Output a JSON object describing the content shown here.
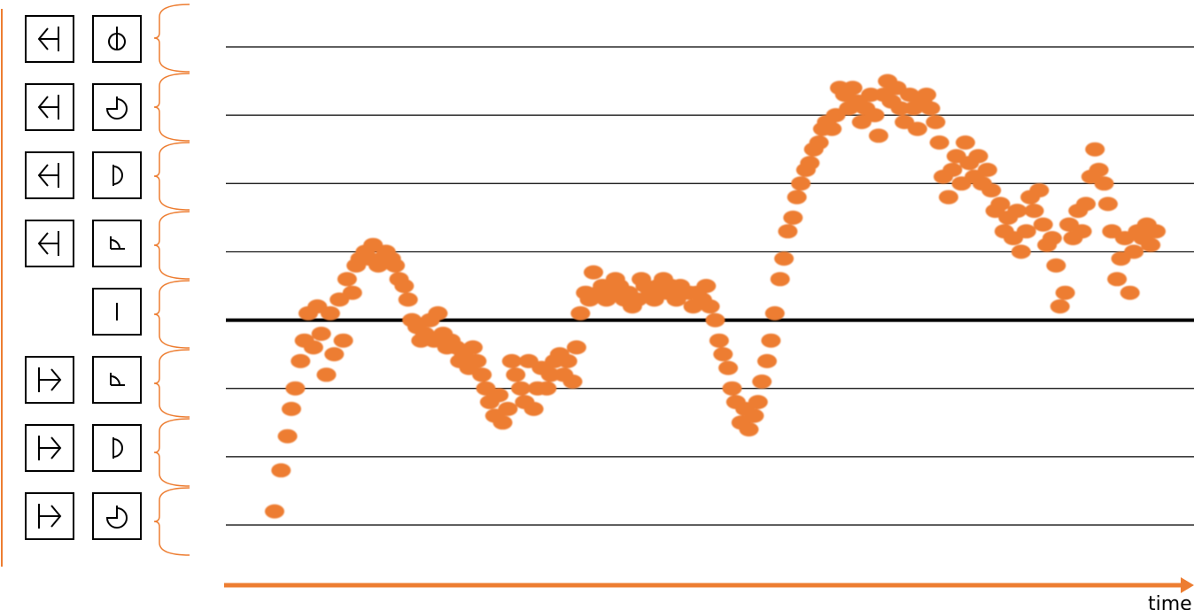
{
  "colors": {
    "points": "#ED7D31",
    "bracket": "#ED7D31",
    "axis_arrow": "#ED7D31",
    "gridline": "#000000",
    "baseline": "#000000"
  },
  "legend": {
    "rows": [
      {
        "direction_icon": "arrow-left-icon",
        "state_icon": "dial-up-icon"
      },
      {
        "direction_icon": "arrow-left-icon",
        "state_icon": "dial-three-quarter-icon"
      },
      {
        "direction_icon": "arrow-left-icon",
        "state_icon": "dial-half-icon"
      },
      {
        "direction_icon": "arrow-left-icon",
        "state_icon": "dial-quarter-icon"
      },
      {
        "direction_icon": "",
        "state_icon": "vertical-bar-icon"
      },
      {
        "direction_icon": "arrow-right-icon",
        "state_icon": "dial-quarter-icon"
      },
      {
        "direction_icon": "arrow-right-icon",
        "state_icon": "dial-half-icon"
      },
      {
        "direction_icon": "arrow-right-icon",
        "state_icon": "dial-three-quarter-icon"
      }
    ]
  },
  "chart_data": {
    "type": "scatter",
    "title": "",
    "xlabel": "time",
    "ylabel": "",
    "grid": true,
    "xlim": [
      0,
      100
    ],
    "ylim": [
      -4,
      4
    ],
    "baseline": 0,
    "gridlines_y": [
      -3,
      -2,
      -1,
      1,
      2,
      3,
      4
    ],
    "series": [
      {
        "points": [
          [
            0,
            -2.8
          ],
          [
            0.5,
            -2.2
          ],
          [
            1,
            -1.7
          ],
          [
            1.3,
            -1.3
          ],
          [
            1.6,
            -1.0
          ],
          [
            2,
            -0.6
          ],
          [
            2.3,
            -0.3
          ],
          [
            2.6,
            0.1
          ],
          [
            3,
            -0.4
          ],
          [
            3.3,
            0.2
          ],
          [
            3.6,
            -0.2
          ],
          [
            4,
            -0.8
          ],
          [
            4.3,
            0.1
          ],
          [
            4.6,
            -0.5
          ],
          [
            5,
            0.3
          ],
          [
            5.3,
            -0.3
          ],
          [
            5.6,
            0.6
          ],
          [
            6,
            0.4
          ],
          [
            6.3,
            0.8
          ],
          [
            6.6,
            0.9
          ],
          [
            7,
            1.0
          ],
          [
            7.3,
            0.9
          ],
          [
            7.6,
            1.1
          ],
          [
            8,
            0.8
          ],
          [
            8.3,
            0.9
          ],
          [
            8.6,
            1.0
          ],
          [
            9,
            0.9
          ],
          [
            9.3,
            0.8
          ],
          [
            9.6,
            0.6
          ],
          [
            10,
            0.5
          ],
          [
            10.3,
            0.3
          ],
          [
            10.6,
            0.0
          ],
          [
            11,
            -0.1
          ],
          [
            11.3,
            -0.3
          ],
          [
            11.6,
            -0.2
          ],
          [
            12,
            0.0
          ],
          [
            12.3,
            -0.3
          ],
          [
            12.6,
            0.1
          ],
          [
            13,
            -0.2
          ],
          [
            13.3,
            -0.4
          ],
          [
            13.6,
            -0.3
          ],
          [
            14,
            -0.4
          ],
          [
            14.3,
            -0.6
          ],
          [
            14.6,
            -0.5
          ],
          [
            15,
            -0.7
          ],
          [
            15.3,
            -0.4
          ],
          [
            15.6,
            -0.6
          ],
          [
            16,
            -0.8
          ],
          [
            16.3,
            -1.0
          ],
          [
            16.6,
            -1.2
          ],
          [
            17,
            -1.4
          ],
          [
            17.3,
            -1.1
          ],
          [
            17.6,
            -1.5
          ],
          [
            18,
            -1.3
          ],
          [
            18.3,
            -0.6
          ],
          [
            18.6,
            -0.8
          ],
          [
            19,
            -1.0
          ],
          [
            19.3,
            -1.2
          ],
          [
            19.6,
            -0.6
          ],
          [
            20,
            -1.3
          ],
          [
            20.3,
            -1.0
          ],
          [
            20.6,
            -0.7
          ],
          [
            21,
            -1.0
          ],
          [
            21.3,
            -0.8
          ],
          [
            21.6,
            -0.6
          ],
          [
            22,
            -0.5
          ],
          [
            22.3,
            -0.8
          ],
          [
            22.6,
            -0.6
          ],
          [
            23,
            -0.9
          ],
          [
            23.3,
            -0.4
          ],
          [
            23.6,
            0.1
          ],
          [
            24,
            0.4
          ],
          [
            24.3,
            0.3
          ],
          [
            24.6,
            0.7
          ],
          [
            25,
            0.4
          ],
          [
            25.3,
            0.5
          ],
          [
            25.6,
            0.3
          ],
          [
            26,
            0.4
          ],
          [
            26.3,
            0.6
          ],
          [
            26.6,
            0.5
          ],
          [
            27,
            0.3
          ],
          [
            27.3,
            0.4
          ],
          [
            27.6,
            0.2
          ],
          [
            28,
            0.3
          ],
          [
            28.3,
            0.6
          ],
          [
            28.6,
            0.5
          ],
          [
            29,
            0.4
          ],
          [
            29.3,
            0.3
          ],
          [
            29.6,
            0.5
          ],
          [
            30,
            0.6
          ],
          [
            30.3,
            0.4
          ],
          [
            30.6,
            0.5
          ],
          [
            31,
            0.3
          ],
          [
            31.3,
            0.5
          ],
          [
            31.6,
            0.4
          ],
          [
            32,
            0.4
          ],
          [
            32.3,
            0.2
          ],
          [
            32.6,
            0.4
          ],
          [
            33,
            0.3
          ],
          [
            33.3,
            0.5
          ],
          [
            33.6,
            0.2
          ],
          [
            34,
            0.0
          ],
          [
            34.3,
            -0.3
          ],
          [
            34.6,
            -0.5
          ],
          [
            35,
            -0.7
          ],
          [
            35.3,
            -1.0
          ],
          [
            35.6,
            -1.2
          ],
          [
            36,
            -1.5
          ],
          [
            36.3,
            -1.3
          ],
          [
            36.6,
            -1.6
          ],
          [
            37,
            -1.4
          ],
          [
            37.3,
            -1.2
          ],
          [
            37.6,
            -0.9
          ],
          [
            38,
            -0.6
          ],
          [
            38.3,
            -0.3
          ],
          [
            38.6,
            0.1
          ],
          [
            39,
            0.6
          ],
          [
            39.3,
            0.9
          ],
          [
            39.6,
            1.3
          ],
          [
            40,
            1.5
          ],
          [
            40.3,
            1.8
          ],
          [
            40.6,
            2.0
          ],
          [
            41,
            2.2
          ],
          [
            41.3,
            2.3
          ],
          [
            41.6,
            2.5
          ],
          [
            42,
            2.6
          ],
          [
            42.3,
            2.8
          ],
          [
            42.6,
            2.9
          ],
          [
            43,
            2.8
          ],
          [
            43.3,
            3.0
          ],
          [
            43.6,
            3.4
          ],
          [
            44,
            3.3
          ],
          [
            44.3,
            3.1
          ],
          [
            44.6,
            3.4
          ],
          [
            45,
            3.2
          ],
          [
            45.3,
            2.9
          ],
          [
            45.6,
            3.1
          ],
          [
            46,
            3.3
          ],
          [
            46.3,
            3.0
          ],
          [
            46.6,
            2.7
          ],
          [
            47,
            3.3
          ],
          [
            47.3,
            3.5
          ],
          [
            47.6,
            3.2
          ],
          [
            48,
            3.4
          ],
          [
            48.3,
            3.1
          ],
          [
            48.6,
            2.9
          ],
          [
            49,
            3.3
          ],
          [
            49.3,
            3.1
          ],
          [
            49.6,
            2.8
          ],
          [
            50,
            3.2
          ],
          [
            50.3,
            3.3
          ],
          [
            50.6,
            3.1
          ],
          [
            51,
            2.9
          ],
          [
            51.3,
            2.6
          ],
          [
            51.6,
            2.1
          ],
          [
            52,
            1.8
          ],
          [
            52.3,
            2.2
          ],
          [
            52.6,
            2.4
          ],
          [
            53,
            2.0
          ],
          [
            53.3,
            2.6
          ],
          [
            53.6,
            2.3
          ],
          [
            54,
            2.1
          ],
          [
            54.3,
            2.4
          ],
          [
            54.6,
            2.0
          ],
          [
            55,
            2.2
          ],
          [
            55.3,
            1.9
          ],
          [
            55.6,
            1.6
          ],
          [
            56,
            1.7
          ],
          [
            56.3,
            1.3
          ],
          [
            56.6,
            1.5
          ],
          [
            57,
            1.2
          ],
          [
            57.3,
            1.6
          ],
          [
            57.6,
            1.0
          ],
          [
            58,
            1.3
          ],
          [
            58.3,
            1.8
          ],
          [
            58.6,
            1.6
          ],
          [
            59,
            1.9
          ],
          [
            59.3,
            1.4
          ],
          [
            59.6,
            1.1
          ],
          [
            60,
            1.2
          ],
          [
            60.3,
            0.8
          ],
          [
            60.6,
            0.2
          ],
          [
            61,
            0.4
          ],
          [
            61.3,
            1.4
          ],
          [
            61.6,
            1.2
          ],
          [
            62,
            1.6
          ],
          [
            62.3,
            1.3
          ],
          [
            62.6,
            1.7
          ],
          [
            63,
            2.1
          ],
          [
            63.3,
            2.5
          ],
          [
            63.6,
            2.2
          ],
          [
            64,
            2.0
          ],
          [
            64.3,
            1.7
          ],
          [
            64.6,
            1.3
          ],
          [
            65,
            0.6
          ],
          [
            65.3,
            0.9
          ],
          [
            65.6,
            1.2
          ],
          [
            66,
            0.4
          ],
          [
            66.3,
            1.0
          ],
          [
            66.6,
            1.3
          ],
          [
            67,
            1.2
          ],
          [
            67.3,
            1.4
          ],
          [
            67.6,
            1.1
          ],
          [
            68,
            1.3
          ]
        ]
      }
    ]
  }
}
